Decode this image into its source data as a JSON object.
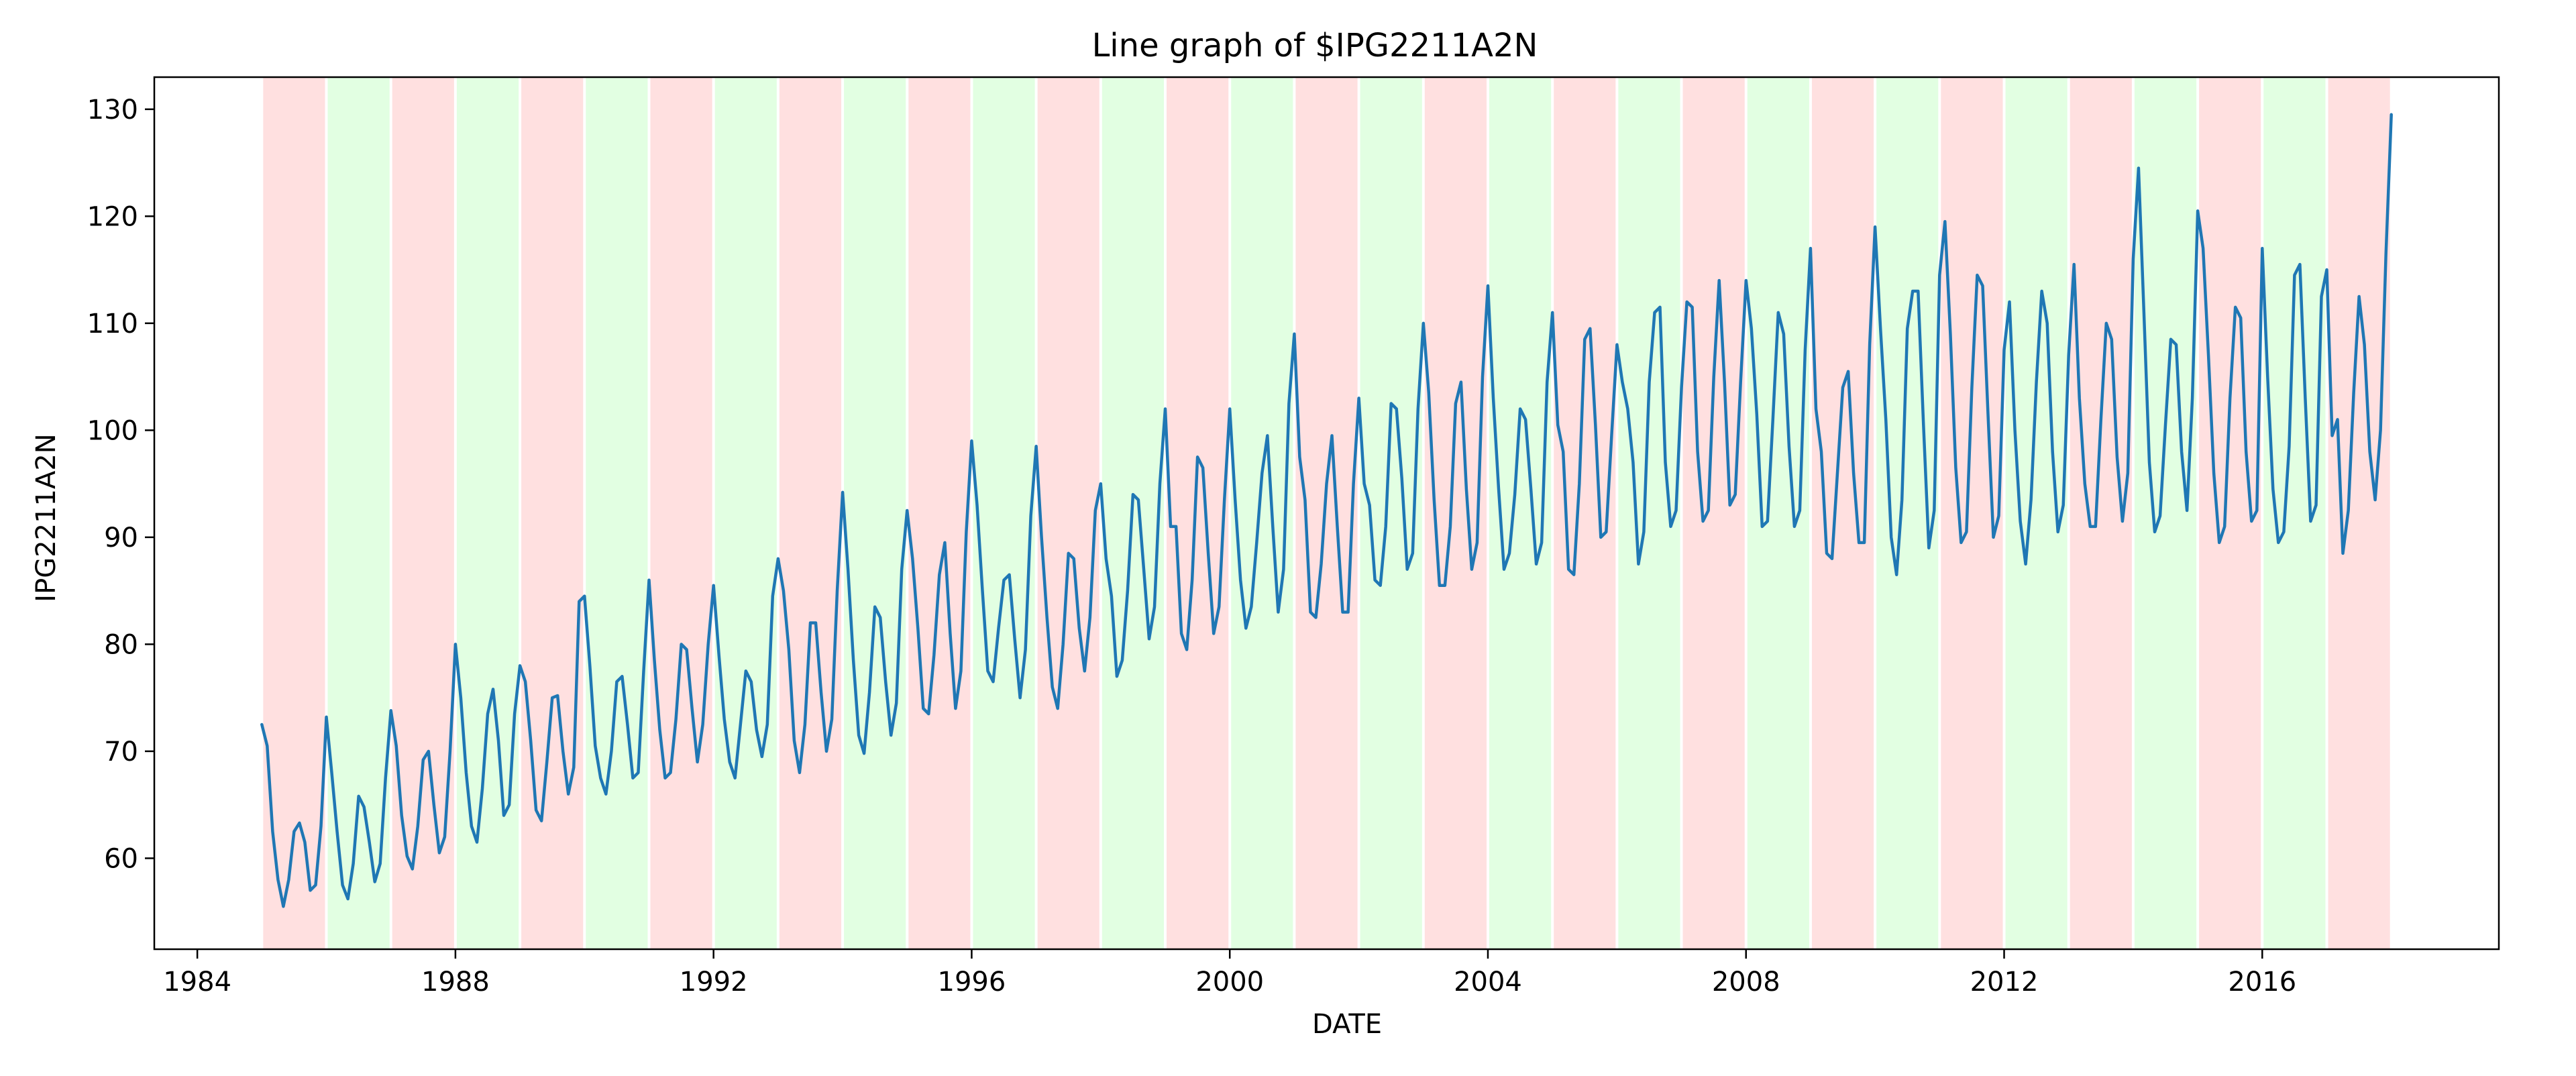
{
  "chart_data": {
    "type": "line",
    "title": "Line graph of $IPG2211A2N",
    "xlabel": "DATE",
    "ylabel": "IPG2211A2N",
    "xlim": [
      "1983-05-01",
      "2019-09-01"
    ],
    "ylim": [
      51.5,
      133
    ],
    "x_ticks": [
      "1984",
      "1988",
      "1992",
      "1996",
      "2000",
      "2004",
      "2008",
      "2012",
      "2016"
    ],
    "y_ticks": [
      "60",
      "70",
      "80",
      "90",
      "100",
      "110",
      "120",
      "130"
    ],
    "grid": false,
    "legend": "none",
    "line_color": "#1f77b4",
    "band_colors": {
      "odd_year": "#ffe0e0",
      "even_year": "#e2ffe2"
    },
    "band_years": [
      1985,
      1986,
      1987,
      1988,
      1989,
      1990,
      1991,
      1992,
      1993,
      1994,
      1995,
      1996,
      1997,
      1998,
      1999,
      2000,
      2001,
      2002,
      2003,
      2004,
      2005,
      2006,
      2007,
      2008,
      2009,
      2010,
      2011,
      2012,
      2013,
      2014,
      2015,
      2016,
      2017
    ],
    "series": [
      {
        "start": "1985-01",
        "frequency": "monthly",
        "values": [
          72.5,
          70.5,
          62.5,
          58.0,
          55.5,
          58.0,
          62.5,
          63.3,
          61.5,
          57.0,
          57.5,
          63.0,
          73.2,
          68.0,
          62.5,
          57.5,
          56.2,
          59.5,
          65.8,
          64.8,
          61.5,
          57.8,
          59.5,
          67.5,
          73.8,
          70.5,
          64.0,
          60.2,
          59.0,
          63.0,
          69.2,
          70.0,
          65.0,
          60.5,
          62.0,
          70.0,
          80.0,
          75.0,
          68.0,
          63.0,
          61.5,
          66.5,
          73.5,
          75.8,
          71.0,
          64.0,
          65.0,
          73.5,
          78.0,
          76.5,
          71.0,
          64.5,
          63.5,
          69.0,
          75.0,
          75.2,
          70.0,
          66.0,
          68.5,
          84.0,
          84.5,
          78.0,
          70.5,
          67.5,
          66.0,
          70.0,
          76.5,
          77.0,
          72.5,
          67.5,
          68.0,
          77.5,
          86.0,
          78.5,
          72.0,
          67.5,
          68.0,
          73.0,
          80.0,
          79.5,
          74.0,
          69.0,
          72.5,
          80.0,
          85.5,
          79.0,
          73.0,
          69.0,
          67.5,
          72.5,
          77.5,
          76.5,
          72.0,
          69.5,
          72.5,
          84.5,
          88.0,
          85.0,
          79.5,
          71.0,
          68.0,
          72.5,
          82.0,
          82.0,
          75.5,
          70.0,
          73.0,
          85.0,
          94.2,
          87.0,
          78.5,
          71.5,
          69.8,
          75.5,
          83.5,
          82.5,
          76.5,
          71.5,
          74.5,
          87.0,
          92.5,
          88.0,
          81.5,
          74.0,
          73.5,
          79.0,
          86.5,
          89.5,
          81.0,
          74.0,
          77.5,
          90.5,
          99.0,
          93.0,
          85.0,
          77.5,
          76.5,
          81.5,
          86.0,
          86.5,
          80.5,
          75.0,
          79.5,
          92.0,
          98.5,
          90.0,
          82.5,
          76.0,
          74.0,
          80.0,
          88.5,
          88.0,
          81.5,
          77.5,
          82.5,
          92.5,
          95.0,
          88.0,
          84.5,
          77.0,
          78.5,
          85.0,
          94.0,
          93.5,
          87.0,
          80.5,
          83.5,
          95.0,
          102.0,
          91.0,
          91.0,
          81.0,
          79.5,
          86.0,
          97.5,
          96.5,
          88.5,
          81.0,
          83.5,
          93.5,
          102.0,
          93.5,
          86.0,
          81.5,
          83.5,
          89.5,
          96.0,
          99.5,
          91.0,
          83.0,
          87.0,
          102.5,
          109.0,
          97.5,
          93.5,
          83.0,
          82.5,
          87.5,
          95.0,
          99.5,
          91.0,
          83.0,
          83.0,
          95.0,
          103.0,
          95.0,
          93.0,
          86.0,
          85.5,
          91.0,
          102.5,
          102.0,
          95.5,
          87.0,
          88.5,
          102.0,
          110.0,
          103.5,
          93.5,
          85.5,
          85.5,
          91.0,
          102.5,
          104.5,
          94.5,
          87.0,
          89.5,
          105.0,
          113.5,
          103.0,
          94.5,
          87.0,
          88.5,
          94.0,
          102.0,
          101.0,
          94.5,
          87.5,
          89.5,
          104.5,
          111.0,
          100.5,
          98.0,
          87.0,
          86.5,
          95.0,
          108.5,
          109.5,
          100.5,
          90.0,
          90.5,
          99.5,
          108.0,
          104.5,
          102.0,
          97.0,
          87.5,
          90.5,
          104.5,
          111.0,
          111.5,
          97.0,
          91.0,
          92.5,
          104.0,
          112.0,
          111.5,
          98.0,
          91.5,
          92.5,
          105.0,
          114.0,
          104.5,
          93.0,
          94.0,
          104.5,
          114.0,
          109.5,
          101.5,
          91.0,
          91.5,
          101.0,
          111.0,
          109.0,
          98.5,
          91.0,
          92.5,
          107.5,
          117.0,
          102.0,
          98.0,
          88.5,
          88.0,
          96.0,
          104.0,
          105.5,
          96.0,
          89.5,
          89.5,
          108.0,
          119.0,
          109.5,
          101.0,
          90.0,
          86.5,
          93.5,
          109.5,
          113.0,
          113.0,
          100.5,
          89.0,
          92.5,
          114.5,
          119.5,
          109.0,
          96.5,
          89.5,
          90.5,
          104.0,
          114.5,
          113.5,
          101.5,
          90.0,
          92.0,
          107.5,
          112.0,
          100.0,
          91.5,
          87.5,
          93.5,
          104.5,
          113.0,
          110.0,
          98.0,
          90.5,
          93.0,
          107.0,
          115.5,
          103.0,
          95.0,
          91.0,
          91.0,
          101.0,
          110.0,
          108.5,
          97.5,
          91.5,
          96.0,
          116.0,
          124.5,
          111.0,
          97.0,
          90.5,
          92.0,
          100.5,
          108.5,
          108.0,
          98.0,
          92.5,
          103.0,
          120.5,
          117.0,
          107.0,
          96.0,
          89.5,
          91.0,
          103.0,
          111.5,
          110.5,
          98.0,
          91.5,
          92.5,
          117.0,
          105.0,
          94.5,
          89.5,
          90.5,
          98.5,
          114.5,
          115.5,
          103.0,
          91.5,
          93.0,
          112.5,
          115.0,
          99.5,
          101.0,
          88.5,
          92.5,
          103.5,
          112.5,
          108.0,
          98.0,
          93.5,
          100.0,
          116.5,
          129.5
        ]
      }
    ]
  }
}
